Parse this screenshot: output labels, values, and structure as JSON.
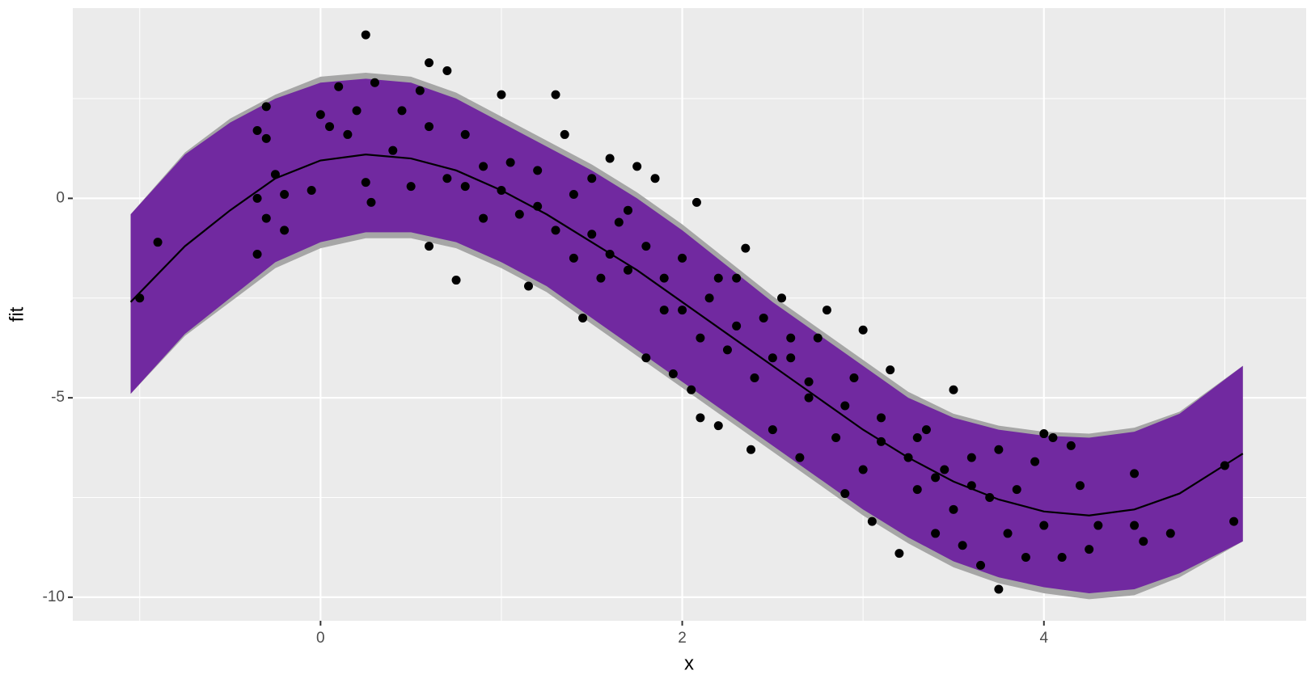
{
  "chart_data": {
    "type": "scatter",
    "x_label": "x",
    "y_label": "fit",
    "xlim": [
      -1.37,
      5.45
    ],
    "ylim": [
      -10.59,
      4.77
    ],
    "xticks": [
      0,
      2,
      4
    ],
    "yticks": [
      0,
      -5,
      -10
    ],
    "xminor": [
      -1,
      1,
      3,
      5
    ],
    "yminor": [
      2.5,
      -2.5,
      -7.5
    ],
    "grid": true,
    "point_color": "#000000",
    "fit": {
      "color": "#000000",
      "x": [
        -1.05,
        -0.75,
        -0.5,
        -0.25,
        0,
        0.25,
        0.5,
        0.75,
        1,
        1.25,
        1.5,
        1.75,
        2,
        2.25,
        2.5,
        2.75,
        3,
        3.25,
        3.5,
        3.75,
        4,
        4.25,
        4.5,
        4.75,
        5.1
      ],
      "values": [
        -2.6,
        -1.2,
        -0.3,
        0.5,
        0.95,
        1.1,
        1.0,
        0.7,
        0.2,
        -0.4,
        -1.1,
        -1.8,
        -2.6,
        -3.4,
        -4.2,
        -5.0,
        -5.8,
        -6.5,
        -7.1,
        -7.55,
        -7.85,
        -7.95,
        -7.8,
        -7.4,
        -6.4
      ]
    },
    "ribbons": [
      {
        "color": "#a6a6a6",
        "upper": [
          -0.4,
          1.15,
          2.0,
          2.6,
          3.05,
          3.15,
          3.05,
          2.65,
          2.05,
          1.45,
          0.85,
          0.15,
          -0.65,
          -1.55,
          -2.45,
          -3.25,
          -4.05,
          -4.85,
          -5.4,
          -5.7,
          -5.85,
          -5.9,
          -5.75,
          -5.35,
          -4.2
        ],
        "lower": [
          -4.9,
          -3.45,
          -2.6,
          -1.75,
          -1.25,
          -1.0,
          -1.0,
          -1.25,
          -1.75,
          -2.35,
          -3.15,
          -3.95,
          -4.75,
          -5.55,
          -6.35,
          -7.15,
          -7.95,
          -8.65,
          -9.25,
          -9.65,
          -9.9,
          -10.05,
          -9.95,
          -9.5,
          -8.6
        ]
      },
      {
        "color": "#7129a0",
        "upper": [
          -0.4,
          1.1,
          1.9,
          2.5,
          2.9,
          3.0,
          2.9,
          2.5,
          1.9,
          1.3,
          0.7,
          0.0,
          -0.8,
          -1.7,
          -2.6,
          -3.4,
          -4.2,
          -5.0,
          -5.5,
          -5.8,
          -5.95,
          -6.0,
          -5.85,
          -5.4,
          -4.2
        ],
        "lower": [
          -4.9,
          -3.4,
          -2.5,
          -1.6,
          -1.1,
          -0.85,
          -0.85,
          -1.1,
          -1.6,
          -2.2,
          -3.0,
          -3.8,
          -4.6,
          -5.4,
          -6.2,
          -7.0,
          -7.8,
          -8.5,
          -9.1,
          -9.5,
          -9.75,
          -9.9,
          -9.8,
          -9.4,
          -8.6
        ]
      }
    ],
    "x": [
      -0.9,
      -1.0,
      -0.35,
      -0.3,
      -0.3,
      -0.35,
      -0.35,
      -0.25,
      -0.2,
      -0.2,
      -0.3,
      -0.05,
      0,
      0.05,
      0.1,
      0.25,
      0.3,
      0.2,
      0.15,
      0.25,
      0.28,
      0.4,
      0.45,
      0.5,
      0.55,
      0.6,
      0.7,
      0.6,
      0.6,
      0.75,
      0.7,
      0.8,
      0.9,
      1.0,
      1.0,
      1.1,
      1.15,
      1.2,
      1.3,
      1.3,
      1.35,
      1.4,
      1.45,
      1.5,
      1.55,
      1.6,
      1.65,
      1.7,
      1.75,
      1.8,
      1.8,
      1.85,
      1.9,
      1.95,
      2.0,
      2.05,
      2.08,
      2.1,
      2.1,
      2.15,
      2.2,
      2.25,
      2.3,
      2.35,
      2.38,
      2.4,
      2.45,
      2.5,
      2.55,
      2.6,
      2.65,
      2.7,
      2.75,
      2.8,
      2.85,
      2.9,
      2.95,
      3.0,
      3.0,
      3.05,
      3.1,
      3.15,
      3.2,
      3.25,
      3.3,
      3.35,
      3.4,
      3.45,
      3.5,
      3.5,
      3.55,
      3.6,
      3.65,
      3.7,
      3.75,
      3.75,
      3.8,
      3.85,
      3.9,
      3.95,
      4.0,
      4.0,
      4.05,
      4.1,
      4.15,
      4.2,
      4.25,
      4.3,
      4.5,
      4.5,
      4.55,
      4.7,
      5.0,
      5.05,
      0.8,
      0.9,
      1.05,
      1.2,
      1.4,
      1.5,
      1.6,
      1.7,
      1.9,
      2.0,
      2.2,
      2.3,
      2.5,
      2.6,
      2.7,
      2.9,
      3.1,
      3.3,
      3.4,
      3.6
    ],
    "y": [
      -1.1,
      -2.5,
      1.7,
      2.3,
      1.5,
      0.0,
      -1.4,
      0.6,
      -0.8,
      0.1,
      -0.5,
      0.2,
      2.1,
      1.8,
      2.8,
      4.1,
      2.9,
      2.2,
      1.6,
      0.4,
      -0.1,
      1.2,
      2.2,
      0.3,
      2.7,
      3.4,
      3.2,
      1.8,
      -1.2,
      -2.05,
      0.5,
      1.6,
      0.8,
      2.6,
      0.2,
      -0.4,
      -2.2,
      0.7,
      2.6,
      -0.8,
      1.6,
      -1.5,
      -3.0,
      0.5,
      -2.0,
      1.0,
      -0.6,
      -1.8,
      0.8,
      -4.0,
      -1.2,
      0.5,
      -2.8,
      -4.4,
      -1.5,
      -4.8,
      -0.1,
      -3.5,
      -5.5,
      -2.5,
      -5.7,
      -3.8,
      -2.0,
      -1.25,
      -6.3,
      -4.5,
      -3.0,
      -5.8,
      -2.5,
      -4.0,
      -6.5,
      -5.0,
      -3.5,
      -2.8,
      -6.0,
      -7.4,
      -4.5,
      -3.3,
      -6.8,
      -8.1,
      -5.5,
      -4.3,
      -8.9,
      -6.5,
      -7.3,
      -5.8,
      -8.4,
      -6.8,
      -4.8,
      -7.8,
      -8.7,
      -6.5,
      -9.2,
      -7.5,
      -9.8,
      -6.3,
      -8.4,
      -7.3,
      -9.0,
      -6.6,
      -5.9,
      -8.2,
      -6.0,
      -9.0,
      -6.2,
      -7.2,
      -8.8,
      -8.2,
      -6.9,
      -8.2,
      -8.6,
      -8.4,
      -6.7,
      -8.1,
      0.3,
      -0.5,
      0.9,
      -0.2,
      0.1,
      -0.9,
      -1.4,
      -0.3,
      -2.0,
      -2.8,
      -2.0,
      -3.2,
      -4.0,
      -3.5,
      -4.6,
      -5.2,
      -6.1,
      -6.0,
      -7.0,
      -7.2
    ]
  }
}
